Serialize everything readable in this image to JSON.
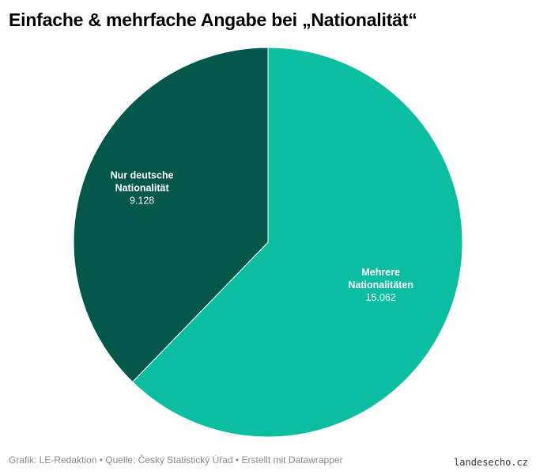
{
  "chart_data": {
    "type": "pie",
    "title": "Einfache & mehrfache Angabe bei „Nationalität“",
    "slices": [
      {
        "label_line1": "Mehrere",
        "label_line2": "Nationalitäten",
        "value_text": "15.062",
        "value": 15062,
        "color": "#0bbda1"
      },
      {
        "label_line1": "Nur deutsche",
        "label_line2": "Nationalität",
        "value_text": "9.128",
        "value": 9128,
        "color": "#04574a"
      }
    ]
  },
  "footer": {
    "credits": "Grafik: LE-Redaktion • Quelle: Český Statistický Úřad • Erstellt mit Datawrapper"
  },
  "watermark": "landesecho.cz"
}
